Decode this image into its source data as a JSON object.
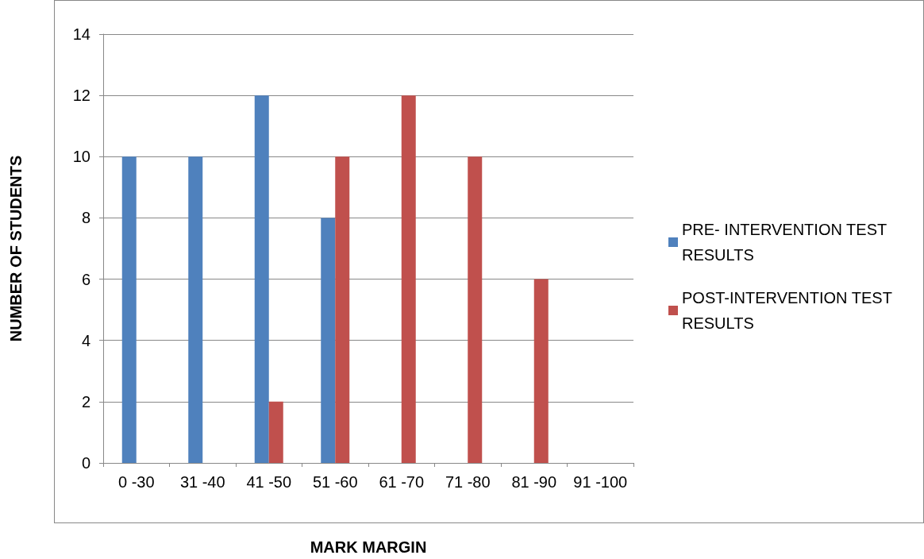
{
  "chart_data": {
    "type": "bar",
    "xlabel": "MARK MARGIN",
    "ylabel": "NUMBER OF STUDENTS",
    "categories": [
      "0 -30",
      "31 -40",
      "41 -50",
      "51 -60",
      "61 -70",
      "71 -80",
      "81 -90",
      "91 -100"
    ],
    "series": [
      {
        "name": "PRE- INTERVENTION TEST RESULTS",
        "color": "#4f81bd",
        "values": [
          10,
          10,
          12,
          8,
          0,
          0,
          0,
          0
        ]
      },
      {
        "name": "POST-INTERVENTION TEST RESULTS",
        "color": "#c0504d",
        "values": [
          0,
          0,
          2,
          10,
          12,
          10,
          6,
          0
        ]
      }
    ],
    "ylim": [
      0,
      14
    ],
    "yticks": [
      0,
      2,
      4,
      6,
      8,
      10,
      12,
      14
    ],
    "grid": "y",
    "legend": "right"
  }
}
